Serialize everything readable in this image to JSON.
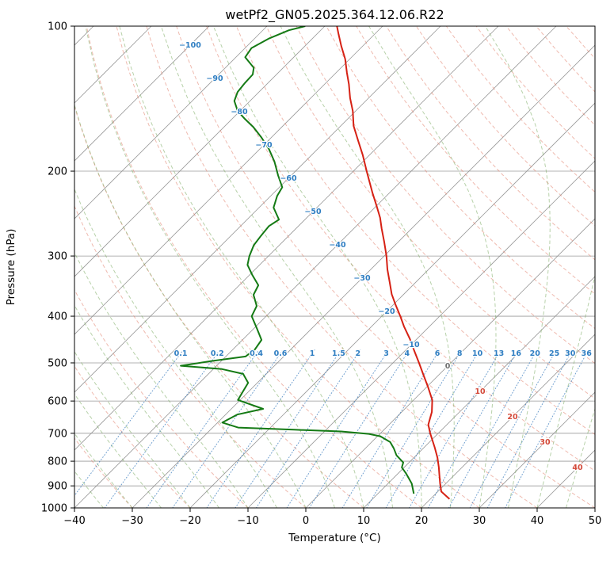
{
  "title": "wetPf2_GN05.2025.364.12.06.R22",
  "axes": {
    "x_label": "Temperature (°C)",
    "y_label": "Pressure (hPa)",
    "x_ticks": [
      -40,
      -30,
      -20,
      -10,
      0,
      10,
      20,
      30,
      40,
      50
    ],
    "y_ticks": [
      100,
      200,
      300,
      400,
      500,
      600,
      700,
      800,
      900,
      1000
    ],
    "x_range": [
      -40,
      50
    ],
    "p_top": 100,
    "p_bottom": 1000,
    "skew": 1.0
  },
  "colors": {
    "temperature": "#d62114",
    "dewpoint": "#147a14",
    "isotherm": "#8f8f8f",
    "grid": "#8f8f8f",
    "dry_adiabat": "#e2826e",
    "moist_adiabat": "#7cab63",
    "mixing": "#3f7fbf",
    "label_cold": "#2f7ec2",
    "label_warm": "#d44a3a",
    "label_zero": "#707070",
    "frame": "#000000"
  },
  "background": {
    "isotherms": {
      "from": -120,
      "to": 50,
      "step": 10
    },
    "dry_adiabats": {
      "from": -40,
      "to": 190,
      "step": 10
    },
    "moist_adiabats": {
      "from": -40,
      "to": 55,
      "step": 5
    },
    "mixing_ratios_g_kg": [
      0.1,
      0.2,
      0.4,
      0.6,
      1,
      1.5,
      2,
      3,
      4,
      6,
      8,
      10,
      13,
      16,
      20,
      25,
      30,
      36
    ],
    "mixing_line_top_hPa": 470,
    "mixing_label_hPa": 478,
    "isotherm_labels_cold": [
      {
        "t": -100,
        "y": 57
      },
      {
        "t": -90,
        "y": 99
      },
      {
        "t": -80,
        "y": 141
      },
      {
        "t": -70,
        "y": 183
      },
      {
        "t": -60,
        "y": 225
      },
      {
        "t": -50,
        "y": 267
      },
      {
        "t": -40,
        "y": 309
      },
      {
        "t": -30,
        "y": 351
      },
      {
        "t": -20,
        "y": 393
      },
      {
        "t": -10,
        "y": 435
      }
    ],
    "isotherm_labels_warm": [
      {
        "t": 0,
        "y": 462
      },
      {
        "t": 10,
        "y": 494
      },
      {
        "t": 20,
        "y": 526
      },
      {
        "t": 30,
        "y": 558
      },
      {
        "t": 40,
        "y": 590
      }
    ]
  },
  "chart_data": {
    "type": "line",
    "title": "wetPf2_GN05.2025.364.12.06.R22",
    "xlabel": "Temperature (°C)",
    "ylabel": "Pressure (hPa)",
    "x_range_C": [
      -40,
      50
    ],
    "pressure_range_hPa": [
      100,
      1000
    ],
    "y_scale": "log, inverted (1000 at bottom, 100 at top), skew-T projection 45deg",
    "series": [
      {
        "name": "Dewpoint",
        "color": "#147a14",
        "pressure_hPa": [
          934,
          890,
          850,
          824,
          805,
          778,
          752,
          730,
          710,
          702,
          694,
          688,
          681,
          665,
          640,
          623,
          597,
          573,
          550,
          527,
          515,
          507,
          496,
          485,
          469,
          448,
          424,
          400,
          381,
          361,
          345,
          328,
          313,
          300,
          285,
          272,
          260,
          252,
          238,
          225,
          216,
          204,
          191,
          180,
          170,
          162,
          156,
          150,
          143,
          137,
          131,
          126,
          122,
          116,
          111,
          106,
          102,
          100
        ],
        "temp_C": [
          16.2,
          14.1,
          11.5,
          9.6,
          9.0,
          6.6,
          4.9,
          3.2,
          0.5,
          -1.9,
          -7.1,
          -15.6,
          -25.6,
          -29.2,
          -28.0,
          -24.5,
          -30.4,
          -31.0,
          -31.6,
          -34.0,
          -38.5,
          -46.2,
          -41.9,
          -36.6,
          -36.2,
          -36.7,
          -39.5,
          -42.5,
          -43.4,
          -45.9,
          -46.7,
          -49.6,
          -52.1,
          -53.3,
          -54.4,
          -54.8,
          -55.1,
          -54.5,
          -57.5,
          -58.9,
          -59.5,
          -62.3,
          -65.3,
          -68.4,
          -71.8,
          -74.9,
          -77.7,
          -80.4,
          -82.7,
          -83.7,
          -84.0,
          -84.1,
          -85.1,
          -88.4,
          -88.9,
          -87.5,
          -85.5,
          -83.4
        ]
      },
      {
        "name": "Temperature",
        "color": "#d62114",
        "pressure_hPa": [
          958,
          925,
          890,
          850,
          824,
          787,
          750,
          700,
          672,
          632,
          597,
          562,
          527,
          500,
          472,
          446,
          420,
          400,
          378,
          360,
          341,
          320,
          300,
          280,
          263,
          250,
          236,
          222,
          200,
          185,
          173,
          161,
          150,
          141,
          132,
          125,
          117,
          110,
          104,
          100
        ],
        "temp_C": [
          23.3,
          20.6,
          19.0,
          17.2,
          16.0,
          14.1,
          11.9,
          8.6,
          6.8,
          5.2,
          3.2,
          0.3,
          -2.9,
          -5.5,
          -8.4,
          -11.2,
          -14.4,
          -16.8,
          -19.7,
          -22.1,
          -24.4,
          -27.1,
          -29.6,
          -32.5,
          -35.2,
          -37.3,
          -40.0,
          -42.9,
          -47.7,
          -51.2,
          -54.4,
          -57.8,
          -60.5,
          -63.2,
          -65.8,
          -68.1,
          -70.8,
          -73.7,
          -76.2,
          -77.9
        ]
      }
    ]
  }
}
